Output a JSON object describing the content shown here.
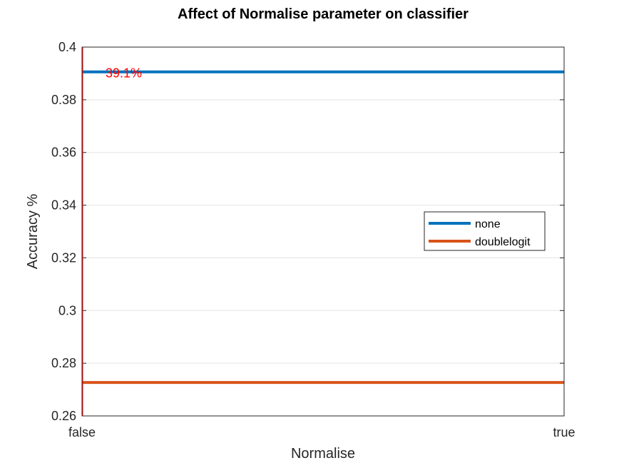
{
  "chart_data": {
    "type": "line",
    "title": "Affect of Normalise parameter on classifier",
    "xlabel": "Normalise",
    "ylabel": "Accuracy %",
    "categories": [
      "false",
      "true"
    ],
    "ylim": [
      0.26,
      0.4
    ],
    "yticks": [
      "0.26",
      "0.28",
      "0.3",
      "0.32",
      "0.34",
      "0.36",
      "0.38",
      "0.4"
    ],
    "grid": "horizontal",
    "legend_position": "right",
    "series": [
      {
        "name": "none",
        "values": [
          0.3906,
          0.3906
        ],
        "color": "#0072BD"
      },
      {
        "name": "doublelogit",
        "values": [
          0.2727,
          0.2727
        ],
        "color": "#D95319"
      }
    ],
    "annotation": {
      "text": "39.1%",
      "x": "false",
      "y": 0.3906,
      "color": "#FF0000"
    }
  }
}
